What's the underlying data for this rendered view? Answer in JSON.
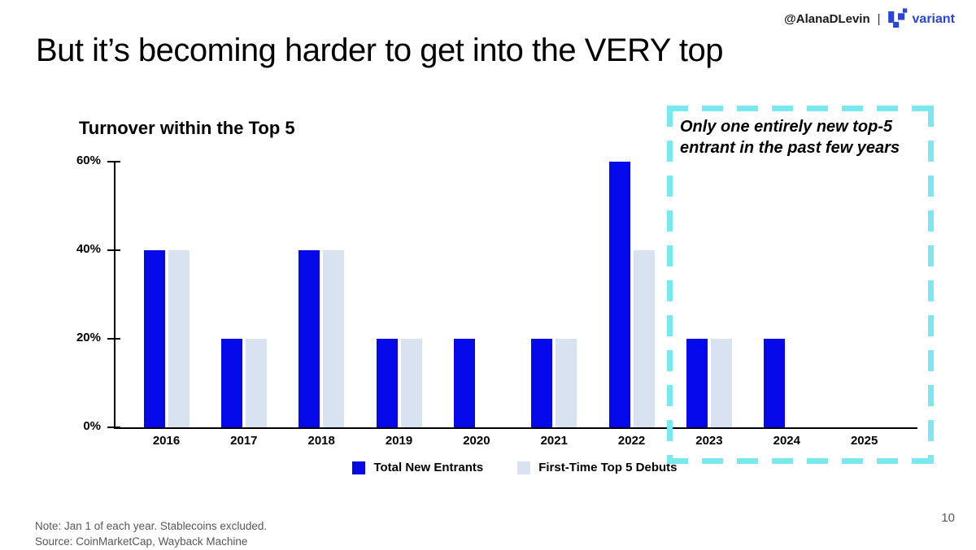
{
  "header": {
    "handle": "@AlanaDLevin",
    "separator": "|",
    "brand": "variant",
    "brand_color": "#2946d6"
  },
  "slide": {
    "title": "But it’s becoming harder to get into the VERY top",
    "page_number": "10",
    "note_line1": "Note: Jan 1 of each year. Stablecoins excluded.",
    "note_line2": "Source: CoinMarketCap, Wayback Machine"
  },
  "annotation": {
    "text": "Only one entirely new top-5 entrant in the past few years",
    "border_color": "#79e8ef"
  },
  "chart_data": {
    "type": "bar",
    "title": "Turnover within the Top 5",
    "categories": [
      "2016",
      "2017",
      "2018",
      "2019",
      "2020",
      "2021",
      "2022",
      "2023",
      "2024",
      "2025"
    ],
    "series": [
      {
        "name": "Total New Entrants",
        "color": "#0509e9",
        "values": [
          40,
          20,
          40,
          20,
          20,
          20,
          60,
          20,
          20,
          null
        ]
      },
      {
        "name": "First-Time Top 5 Debuts",
        "color": "#d9e2f1",
        "values": [
          40,
          20,
          40,
          20,
          null,
          20,
          40,
          20,
          null,
          null
        ]
      }
    ],
    "xlabel": "",
    "ylabel": "",
    "ylim": [
      0,
      60
    ],
    "yticks": [
      0,
      20,
      40,
      60
    ],
    "ytick_labels": [
      "0%",
      "20%",
      "40%",
      "60%"
    ],
    "grid": false,
    "legend_position": "bottom"
  }
}
